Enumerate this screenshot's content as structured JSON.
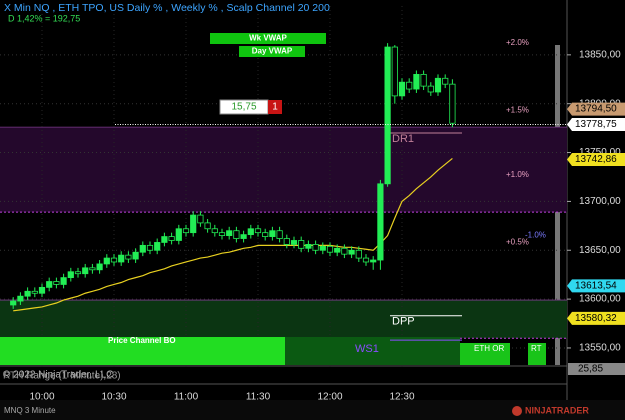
{
  "chart_data": {
    "type": "candlestick",
    "title": "X Min NQ , ETH TPO, US Daily % , Weekly % , Scalp Channel 20  200",
    "subtitle": "D 1,42% = 192,75",
    "instrument": "MNQ 3 Minute",
    "brand": "NINJATRADER",
    "copyright": "© 2022 NinjaTrader, LLC",
    "lower_panel_label": "RTH Range (1 Minute),28)",
    "lower_panel_tag": "25,85",
    "vwap_labels": [
      "Wk VWAP",
      "Day VWAP"
    ],
    "order_box": {
      "qty": "15,75",
      "count": "1"
    },
    "bottom_labels": [
      "Price Channel BO",
      "ETH OR",
      "RT"
    ],
    "categories": [
      null,
      null,
      null,
      null,
      "10:00",
      null,
      null,
      null,
      null,
      null,
      null,
      null,
      null,
      null,
      "10:30",
      null,
      null,
      null,
      null,
      null,
      null,
      null,
      null,
      null,
      "11:00",
      null,
      null,
      null,
      null,
      null,
      null,
      null,
      null,
      null,
      "11:30",
      null,
      null,
      null,
      null,
      null,
      null,
      null,
      null,
      null,
      "12:00",
      null,
      null,
      null,
      null,
      null,
      null,
      null,
      null,
      null,
      "12:30",
      null,
      null,
      null,
      null,
      null,
      null,
      null
    ],
    "open": [
      13594,
      13598,
      13603,
      13608,
      13606,
      13612,
      13618,
      13615,
      13622,
      13628,
      13626,
      13632,
      13630,
      13636,
      13642,
      13638,
      13645,
      13641,
      13648,
      13655,
      13650,
      13658,
      13664,
      13660,
      13672,
      13668,
      13686,
      13678,
      13672,
      13668,
      13665,
      13670,
      13662,
      13666,
      13672,
      13668,
      13664,
      13670,
      13662,
      13656,
      13660,
      13652,
      13656,
      13650,
      13654,
      13648,
      13652,
      13646,
      13650,
      13642,
      13638,
      13640,
      13718,
      13858,
      13808,
      13822,
      13815,
      13830,
      13818,
      13812,
      13826,
      13820
    ],
    "high": [
      13602,
      13607,
      13612,
      13612,
      13616,
      13622,
      13622,
      13626,
      13632,
      13632,
      13636,
      13636,
      13640,
      13646,
      13646,
      13649,
      13649,
      13652,
      13659,
      13659,
      13662,
      13668,
      13668,
      13676,
      13676,
      13690,
      13690,
      13682,
      13676,
      13672,
      13674,
      13674,
      13670,
      13676,
      13676,
      13672,
      13674,
      13674,
      13666,
      13664,
      13664,
      13660,
      13660,
      13658,
      13658,
      13656,
      13656,
      13654,
      13654,
      13646,
      13644,
      13722,
      13862,
      13860,
      13826,
      13826,
      13834,
      13834,
      13822,
      13830,
      13830,
      13825
    ],
    "low": [
      13590,
      13594,
      13599,
      13602,
      13602,
      13608,
      13611,
      13611,
      13618,
      13622,
      13622,
      13626,
      13626,
      13632,
      13634,
      13634,
      13637,
      13637,
      13644,
      13646,
      13646,
      13654,
      13656,
      13656,
      13664,
      13664,
      13674,
      13668,
      13664,
      13661,
      13661,
      13658,
      13658,
      13662,
      13664,
      13660,
      13660,
      13658,
      13652,
      13652,
      13648,
      13648,
      13646,
      13646,
      13644,
      13644,
      13642,
      13642,
      13638,
      13634,
      13630,
      13630,
      13715,
      13800,
      13804,
      13811,
      13811,
      13814,
      13808,
      13808,
      13816,
      13776
    ],
    "close": [
      13598,
      13603,
      13608,
      13606,
      13612,
      13618,
      13615,
      13622,
      13628,
      13626,
      13632,
      13630,
      13636,
      13642,
      13638,
      13645,
      13641,
      13648,
      13655,
      13650,
      13658,
      13664,
      13660,
      13672,
      13668,
      13686,
      13678,
      13672,
      13668,
      13665,
      13670,
      13662,
      13666,
      13672,
      13668,
      13664,
      13670,
      13662,
      13656,
      13660,
      13652,
      13656,
      13650,
      13654,
      13648,
      13652,
      13646,
      13650,
      13642,
      13638,
      13640,
      13718,
      13858,
      13808,
      13822,
      13815,
      13830,
      13818,
      13812,
      13826,
      13820,
      13780
    ],
    "up_color": "#22ee55",
    "down_color": "#000000",
    "series": [
      {
        "color": "#e8d020",
        "values": [
          13588,
          13589,
          13590,
          13591,
          13592,
          13594,
          13596,
          13599,
          13601,
          13603,
          13606,
          13608,
          13610,
          13613,
          13615,
          13617,
          13620,
          13622,
          13624,
          13627,
          13629,
          13631,
          13634,
          13636,
          13638,
          13640,
          13642,
          13643,
          13645,
          13647,
          13648,
          13650,
          13652,
          13653,
          13655,
          13655,
          13655,
          13655,
          13655,
          13655,
          13655,
          13655,
          13655,
          13655,
          13655,
          13654,
          13653,
          13653,
          13652,
          13651,
          13650,
          13657,
          13665,
          13683,
          13700,
          13706,
          13713,
          13719,
          13725,
          13732,
          13738,
          13744
        ]
      }
    ],
    "ylim": [
      13530,
      13900
    ],
    "yticks": [
      {
        "value": 13550,
        "label": "13550,00"
      },
      {
        "value": 13600,
        "label": "13600,00"
      },
      {
        "value": 13650,
        "label": "13650,00"
      },
      {
        "value": 13700,
        "label": "13700,00"
      },
      {
        "value": 13750,
        "label": "13750,00"
      },
      {
        "value": 13800,
        "label": "13800,00"
      },
      {
        "value": 13850,
        "label": "13850,00"
      }
    ],
    "grid": true,
    "zones": [
      {
        "lo": 13689,
        "hi": 13776,
        "color": "#24082c"
      },
      {
        "lo": 13560,
        "hi": 13599,
        "color": "#0b3512"
      }
    ],
    "levels": [
      {
        "label": "DR1",
        "value": 13770,
        "color": "#c08098"
      },
      {
        "label": "DPP",
        "value": 13583,
        "color": "#ffffff"
      },
      {
        "label": "WS1",
        "value": 13558,
        "color": "#8a4cff"
      }
    ],
    "percent_levels": [
      {
        "label": "+2.0%",
        "value": 13862
      },
      {
        "label": "+1.5%",
        "value": 13793
      },
      {
        "label": "+1.0%",
        "value": 13727
      },
      {
        "label": "+0.5%",
        "value": 13658
      },
      {
        "label": "-1.0%",
        "value": 13665
      }
    ],
    "last_price": 13778.75,
    "price_tags": [
      {
        "value": 13794.5,
        "label": "13794,50",
        "color": "#c89a70"
      },
      {
        "value": 13778.75,
        "label": "13778,75",
        "color": "#ffffff"
      },
      {
        "value": 13742.86,
        "label": "13742,86",
        "color": "#f0e020"
      },
      {
        "value": 13613.54,
        "label": "13613,54",
        "color": "#30d8f0"
      },
      {
        "value": 13580.32,
        "label": "13580,32",
        "color": "#f0e020"
      }
    ]
  }
}
